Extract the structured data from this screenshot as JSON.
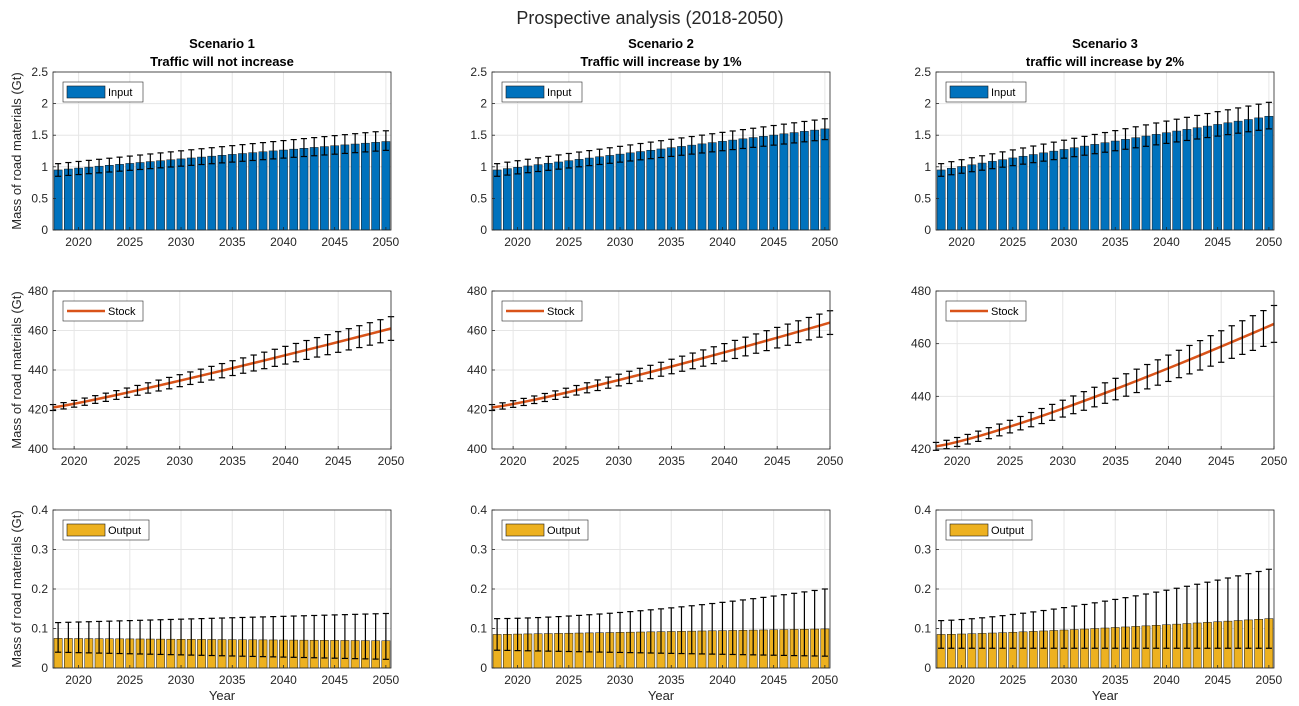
{
  "figure_title": "Prospective analysis (2018-2050)",
  "colors": {
    "input": "#0072BD",
    "stock": "#D95319",
    "output": "#EDB120",
    "error": "#000000",
    "grid": "#e6e6e6",
    "axis": "#262626"
  },
  "chart_data": [
    {
      "type": "bar",
      "row": 0,
      "col": 0,
      "title": [
        "Scenario 1",
        "Traffic will not increase"
      ],
      "ylabel": "Mass of road materials (Gt)",
      "xlabel": "",
      "ylim": [
        0,
        2.5
      ],
      "yticks": [
        0,
        0.5,
        1,
        1.5,
        2,
        2.5
      ],
      "ytick_labels": [
        "0",
        "0.5",
        "1",
        "1.5",
        "2",
        "2.5"
      ],
      "xlim": [
        2017.5,
        2050.5
      ],
      "xticks": [
        2020,
        2025,
        2030,
        2035,
        2040,
        2045,
        2050
      ],
      "xtick_labels": [
        "2020",
        "2025",
        "2030",
        "2035",
        "2040",
        "2045",
        "2050"
      ],
      "grid": true,
      "legend": "Input",
      "legend_position": "top-left",
      "color_key": "input",
      "series": {
        "x_start": 2018,
        "x_end": 2050,
        "mean": {
          "start": 0.95,
          "end": 1.4,
          "shape": "sat",
          "k": 0.13
        },
        "lower": {
          "start": 0.85,
          "end": 1.26,
          "shape": "sat",
          "k": 0.13
        },
        "upper": {
          "start": 1.05,
          "end": 1.57,
          "shape": "sat",
          "k": 0.13
        }
      }
    },
    {
      "type": "bar",
      "row": 0,
      "col": 1,
      "title": [
        "Scenario 2",
        "Traffic will increase by 1%"
      ],
      "ylabel": "",
      "xlabel": "",
      "ylim": [
        0,
        2.5
      ],
      "yticks": [
        0,
        0.5,
        1,
        1.5,
        2,
        2.5
      ],
      "ytick_labels": [
        "0",
        "0.5",
        "1",
        "1.5",
        "2",
        "2.5"
      ],
      "xlim": [
        2017.5,
        2050.5
      ],
      "xticks": [
        2020,
        2025,
        2030,
        2035,
        2040,
        2045,
        2050
      ],
      "xtick_labels": [
        "2020",
        "2025",
        "2030",
        "2035",
        "2040",
        "2045",
        "2050"
      ],
      "grid": true,
      "legend": "Input",
      "legend_position": "top-left",
      "color_key": "input",
      "series": {
        "x_start": 2018,
        "x_end": 2050,
        "mean": {
          "start": 0.95,
          "end": 1.6,
          "shape": "sat",
          "k": 0.09
        },
        "lower": {
          "start": 0.85,
          "end": 1.43,
          "shape": "sat",
          "k": 0.09
        },
        "upper": {
          "start": 1.05,
          "end": 1.76,
          "shape": "sat",
          "k": 0.09
        }
      }
    },
    {
      "type": "bar",
      "row": 0,
      "col": 2,
      "title": [
        "Scenario 3",
        "traffic will increase by 2%"
      ],
      "ylabel": "",
      "xlabel": "",
      "ylim": [
        0,
        2.5
      ],
      "yticks": [
        0,
        0.5,
        1,
        1.5,
        2,
        2.5
      ],
      "ytick_labels": [
        "0",
        "0.5",
        "1",
        "1.5",
        "2",
        "2.5"
      ],
      "xlim": [
        2017.5,
        2050.5
      ],
      "xticks": [
        2020,
        2025,
        2030,
        2035,
        2040,
        2045,
        2050
      ],
      "xtick_labels": [
        "2020",
        "2025",
        "2030",
        "2035",
        "2040",
        "2045",
        "2050"
      ],
      "grid": true,
      "legend": "Input",
      "legend_position": "top-left",
      "color_key": "input",
      "series": {
        "x_start": 2018,
        "x_end": 2050,
        "mean": {
          "start": 0.95,
          "end": 1.8,
          "shape": "sat",
          "k": 0.06
        },
        "lower": {
          "start": 0.85,
          "end": 1.6,
          "shape": "sat",
          "k": 0.06
        },
        "upper": {
          "start": 1.05,
          "end": 2.02,
          "shape": "sat",
          "k": 0.06
        }
      }
    },
    {
      "type": "line",
      "row": 1,
      "col": 0,
      "title": [],
      "ylabel": "Mass of road materials (Gt)",
      "xlabel": "",
      "ylim": [
        400,
        480
      ],
      "yticks": [
        400,
        420,
        440,
        460,
        480
      ],
      "ytick_labels": [
        "400",
        "420",
        "440",
        "460",
        "480"
      ],
      "xlim": [
        2018,
        2050
      ],
      "xticks": [
        2020,
        2025,
        2030,
        2035,
        2040,
        2045,
        2050
      ],
      "xtick_labels": [
        "2020",
        "2025",
        "2030",
        "2035",
        "2040",
        "2045",
        "2050"
      ],
      "grid": true,
      "legend": "Stock",
      "legend_position": "top-left",
      "color_key": "stock",
      "series": {
        "x_start": 2018,
        "x_end": 2050,
        "mean": {
          "start": 421,
          "end": 461,
          "shape": "pow",
          "p": 1.1
        },
        "lower": {
          "start": 419.5,
          "end": 455,
          "shape": "pow",
          "p": 1.1
        },
        "upper": {
          "start": 422.5,
          "end": 467,
          "shape": "pow",
          "p": 1.1
        }
      }
    },
    {
      "type": "line",
      "row": 1,
      "col": 1,
      "title": [],
      "ylabel": "",
      "xlabel": "",
      "ylim": [
        400,
        480
      ],
      "yticks": [
        400,
        420,
        440,
        460,
        480
      ],
      "ytick_labels": [
        "400",
        "420",
        "440",
        "460",
        "480"
      ],
      "xlim": [
        2018,
        2050
      ],
      "xticks": [
        2020,
        2025,
        2030,
        2035,
        2040,
        2045,
        2050
      ],
      "xtick_labels": [
        "2020",
        "2025",
        "2030",
        "2035",
        "2040",
        "2045",
        "2050"
      ],
      "grid": true,
      "legend": "Stock",
      "legend_position": "top-left",
      "color_key": "stock",
      "series": {
        "x_start": 2018,
        "x_end": 2050,
        "mean": {
          "start": 421,
          "end": 464,
          "shape": "pow",
          "p": 1.15
        },
        "lower": {
          "start": 419.5,
          "end": 458,
          "shape": "pow",
          "p": 1.15
        },
        "upper": {
          "start": 422.5,
          "end": 470,
          "shape": "pow",
          "p": 1.15
        }
      }
    },
    {
      "type": "line",
      "row": 1,
      "col": 2,
      "title": [],
      "ylabel": "",
      "xlabel": "",
      "ylim": [
        420,
        480
      ],
      "yticks": [
        420,
        440,
        460,
        480
      ],
      "ytick_labels": [
        "420",
        "440",
        "460",
        "480"
      ],
      "xlim": [
        2018,
        2050
      ],
      "xticks": [
        2020,
        2025,
        2030,
        2035,
        2040,
        2045,
        2050
      ],
      "xtick_labels": [
        "2020",
        "2025",
        "2030",
        "2035",
        "2040",
        "2045",
        "2050"
      ],
      "grid": true,
      "legend": "Stock",
      "legend_position": "top-left",
      "color_key": "stock",
      "series": {
        "x_start": 2018,
        "x_end": 2050,
        "mean": {
          "start": 421,
          "end": 467.5,
          "shape": "pow",
          "p": 1.2
        },
        "lower": {
          "start": 419.5,
          "end": 460.5,
          "shape": "pow",
          "p": 1.2
        },
        "upper": {
          "start": 422.5,
          "end": 474.5,
          "shape": "pow",
          "p": 1.2
        }
      }
    },
    {
      "type": "bar",
      "row": 2,
      "col": 0,
      "title": [],
      "ylabel": "Mass of road materials (Gt)",
      "xlabel": "Year",
      "ylim": [
        0,
        0.4
      ],
      "yticks": [
        0,
        0.1,
        0.2,
        0.3,
        0.4
      ],
      "ytick_labels": [
        "0",
        "0.1",
        "0.2",
        "0.3",
        "0.4"
      ],
      "xlim": [
        2017.5,
        2050.5
      ],
      "xticks": [
        2020,
        2025,
        2030,
        2035,
        2040,
        2045,
        2050
      ],
      "xtick_labels": [
        "2020",
        "2025",
        "2030",
        "2035",
        "2040",
        "2045",
        "2050"
      ],
      "grid": true,
      "legend": "Output",
      "legend_position": "top-left",
      "color_key": "output",
      "series": {
        "x_start": 2018,
        "x_end": 2050,
        "mean": {
          "start": 0.075,
          "end": 0.069,
          "shape": "lin"
        },
        "lower": {
          "start": 0.04,
          "end": 0.022,
          "shape": "lin"
        },
        "upper": {
          "start": 0.115,
          "end": 0.138,
          "shape": "lin"
        }
      }
    },
    {
      "type": "bar",
      "row": 2,
      "col": 1,
      "title": [],
      "ylabel": "",
      "xlabel": "Year",
      "ylim": [
        0,
        0.4
      ],
      "yticks": [
        0,
        0.1,
        0.2,
        0.3,
        0.4
      ],
      "ytick_labels": [
        "0",
        "0.1",
        "0.2",
        "0.3",
        "0.4"
      ],
      "xlim": [
        2017.5,
        2050.5
      ],
      "xticks": [
        2020,
        2025,
        2030,
        2035,
        2040,
        2045,
        2050
      ],
      "xtick_labels": [
        "2020",
        "2025",
        "2030",
        "2035",
        "2040",
        "2045",
        "2050"
      ],
      "grid": true,
      "legend": "Output",
      "legend_position": "top-left",
      "color_key": "output",
      "series": {
        "x_start": 2018,
        "x_end": 2050,
        "mean": {
          "start": 0.085,
          "end": 0.099,
          "shape": "lin"
        },
        "lower": {
          "start": 0.045,
          "end": 0.03,
          "shape": "lin"
        },
        "upper": {
          "start": 0.125,
          "end": 0.2,
          "shape": "pow",
          "p": 1.6
        }
      }
    },
    {
      "type": "bar",
      "row": 2,
      "col": 2,
      "title": [],
      "ylabel": "",
      "xlabel": "Year",
      "ylim": [
        0,
        0.4
      ],
      "yticks": [
        0,
        0.1,
        0.2,
        0.3,
        0.4
      ],
      "ytick_labels": [
        "0",
        "0.1",
        "0.2",
        "0.3",
        "0.4"
      ],
      "xlim": [
        2017.5,
        2050.5
      ],
      "xticks": [
        2020,
        2025,
        2030,
        2035,
        2040,
        2045,
        2050
      ],
      "xtick_labels": [
        "2020",
        "2025",
        "2030",
        "2035",
        "2040",
        "2045",
        "2050"
      ],
      "grid": true,
      "legend": "Output",
      "legend_position": "top-left",
      "color_key": "output",
      "series": {
        "x_start": 2018,
        "x_end": 2050,
        "mean": {
          "start": 0.085,
          "end": 0.125,
          "shape": "pow",
          "p": 1.3
        },
        "lower": {
          "start": 0.05,
          "end": 0.05,
          "shape": "lin"
        },
        "upper": {
          "start": 0.12,
          "end": 0.25,
          "shape": "pow",
          "p": 1.4
        }
      }
    }
  ]
}
